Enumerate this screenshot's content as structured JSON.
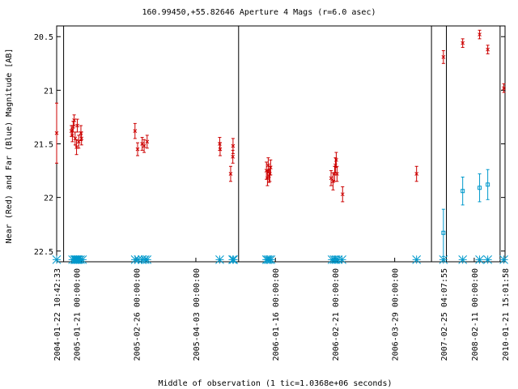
{
  "chart_data": {
    "type": "scatter",
    "title": "160.99450,+55.82646   Aperture 4 Mags (r=6.0 asec)",
    "xlabel": "Middle of observation (1 tic=1.0368e+06 seconds)",
    "ylabel": "Near (Red) and Far (Blue) Magnitude [AB]",
    "ylim": [
      22.6,
      20.4
    ],
    "y_ticks": [
      20.5,
      21,
      21.5,
      22,
      22.5
    ],
    "y_tick_labels": [
      "20.5",
      "21",
      "21.5",
      "22",
      "22.5"
    ],
    "x_ticks": [
      {
        "label": "2004-01-22 10:42:33",
        "pos": 0.0
      },
      {
        "label": "2005-01-21 00:00:00",
        "pos": 1.0
      },
      {
        "label": "2005-02-26 00:00:00",
        "pos": 4.0
      },
      {
        "label": "2005-04-03 00:00:00",
        "pos": 7.0
      },
      {
        "label": "2006-01-16 00:00:00",
        "pos": 11.0
      },
      {
        "label": "2006-02-21 00:00:00",
        "pos": 14.0
      },
      {
        "label": "2006-03-29 00:00:00",
        "pos": 17.0
      },
      {
        "label": "2007-02-25 04:07:55",
        "pos": 19.45
      },
      {
        "label": "2008-02-11 00:00:00",
        "pos": 21.0
      },
      {
        "label": "2010-01-21 15:01:58",
        "pos": 22.55
      }
    ],
    "panels": [
      {
        "x_start": 0.0,
        "x_end": 0.35
      },
      {
        "x_start": 0.35,
        "x_end": 9.15
      },
      {
        "x_start": 9.15,
        "x_end": 18.85
      },
      {
        "x_start": 18.85,
        "x_end": 19.6
      },
      {
        "x_start": 19.6,
        "x_end": 22.3
      },
      {
        "x_start": 22.3,
        "x_end": 22.55
      }
    ],
    "series": [
      {
        "color": "#cc0000",
        "marker": "x",
        "points": [
          {
            "x": 0.0,
            "y": 21.4,
            "err": 0.28
          },
          {
            "x": 0.74,
            "y": 21.38,
            "err": 0.05
          },
          {
            "x": 0.79,
            "y": 21.42,
            "err": 0.06
          },
          {
            "x": 0.83,
            "y": 21.34,
            "err": 0.05
          },
          {
            "x": 0.88,
            "y": 21.28,
            "err": 0.05
          },
          {
            "x": 0.93,
            "y": 21.45,
            "err": 0.06
          },
          {
            "x": 1.0,
            "y": 21.53,
            "err": 0.07
          },
          {
            "x": 1.04,
            "y": 21.33,
            "err": 0.06
          },
          {
            "x": 1.11,
            "y": 21.48,
            "err": 0.06
          },
          {
            "x": 1.22,
            "y": 21.4,
            "err": 0.07
          },
          {
            "x": 1.25,
            "y": 21.45,
            "err": 0.06
          },
          {
            "x": 3.94,
            "y": 21.38,
            "err": 0.07
          },
          {
            "x": 4.07,
            "y": 21.55,
            "err": 0.06
          },
          {
            "x": 4.3,
            "y": 21.5,
            "err": 0.06
          },
          {
            "x": 4.4,
            "y": 21.52,
            "err": 0.06
          },
          {
            "x": 4.55,
            "y": 21.48,
            "err": 0.06
          },
          {
            "x": 8.2,
            "y": 21.5,
            "err": 0.06
          },
          {
            "x": 8.22,
            "y": 21.55,
            "err": 0.06
          },
          {
            "x": 8.75,
            "y": 21.78,
            "err": 0.07
          },
          {
            "x": 8.86,
            "y": 21.62,
            "err": 0.06
          },
          {
            "x": 8.87,
            "y": 21.52,
            "err": 0.07
          },
          {
            "x": 10.55,
            "y": 21.75,
            "err": 0.08
          },
          {
            "x": 10.6,
            "y": 21.82,
            "err": 0.07
          },
          {
            "x": 10.64,
            "y": 21.7,
            "err": 0.07
          },
          {
            "x": 10.68,
            "y": 21.8,
            "err": 0.06
          },
          {
            "x": 10.72,
            "y": 21.78,
            "err": 0.07
          },
          {
            "x": 10.76,
            "y": 21.72,
            "err": 0.07
          },
          {
            "x": 13.8,
            "y": 21.82,
            "err": 0.07
          },
          {
            "x": 13.9,
            "y": 21.85,
            "err": 0.08
          },
          {
            "x": 13.98,
            "y": 21.78,
            "err": 0.07
          },
          {
            "x": 14.02,
            "y": 21.7,
            "err": 0.07
          },
          {
            "x": 14.06,
            "y": 21.65,
            "err": 0.07
          },
          {
            "x": 14.1,
            "y": 21.78,
            "err": 0.07
          },
          {
            "x": 14.38,
            "y": 21.97,
            "err": 0.07
          },
          {
            "x": 18.1,
            "y": 21.78,
            "err": 0.07
          },
          {
            "x": 19.45,
            "y": 20.69,
            "err": 0.06
          },
          {
            "x": 20.42,
            "y": 20.56,
            "err": 0.04
          },
          {
            "x": 21.27,
            "y": 20.48,
            "err": 0.04
          },
          {
            "x": 21.68,
            "y": 20.62,
            "err": 0.04
          },
          {
            "x": 22.49,
            "y": 20.98,
            "err": 0.04
          }
        ]
      },
      {
        "color": "#0099cc",
        "marker": "square",
        "points": [
          {
            "x": 19.45,
            "y": 22.33,
            "err": 0.22
          },
          {
            "x": 20.42,
            "y": 21.94,
            "err": 0.13
          },
          {
            "x": 21.27,
            "y": 21.91,
            "err": 0.13
          },
          {
            "x": 21.68,
            "y": 21.88,
            "err": 0.14
          }
        ]
      }
    ],
    "baseline_markers": {
      "color": "#0099cc",
      "y": 22.58,
      "x": [
        0.0,
        0.8,
        0.9,
        0.95,
        1.0,
        1.05,
        1.1,
        1.2,
        1.3,
        3.95,
        4.1,
        4.3,
        4.45,
        4.55,
        8.2,
        8.85,
        8.9,
        10.55,
        10.62,
        10.7,
        10.78,
        13.85,
        13.95,
        14.05,
        14.15,
        14.35,
        18.1,
        19.45,
        20.42,
        21.27,
        21.68,
        22.49
      ]
    }
  }
}
